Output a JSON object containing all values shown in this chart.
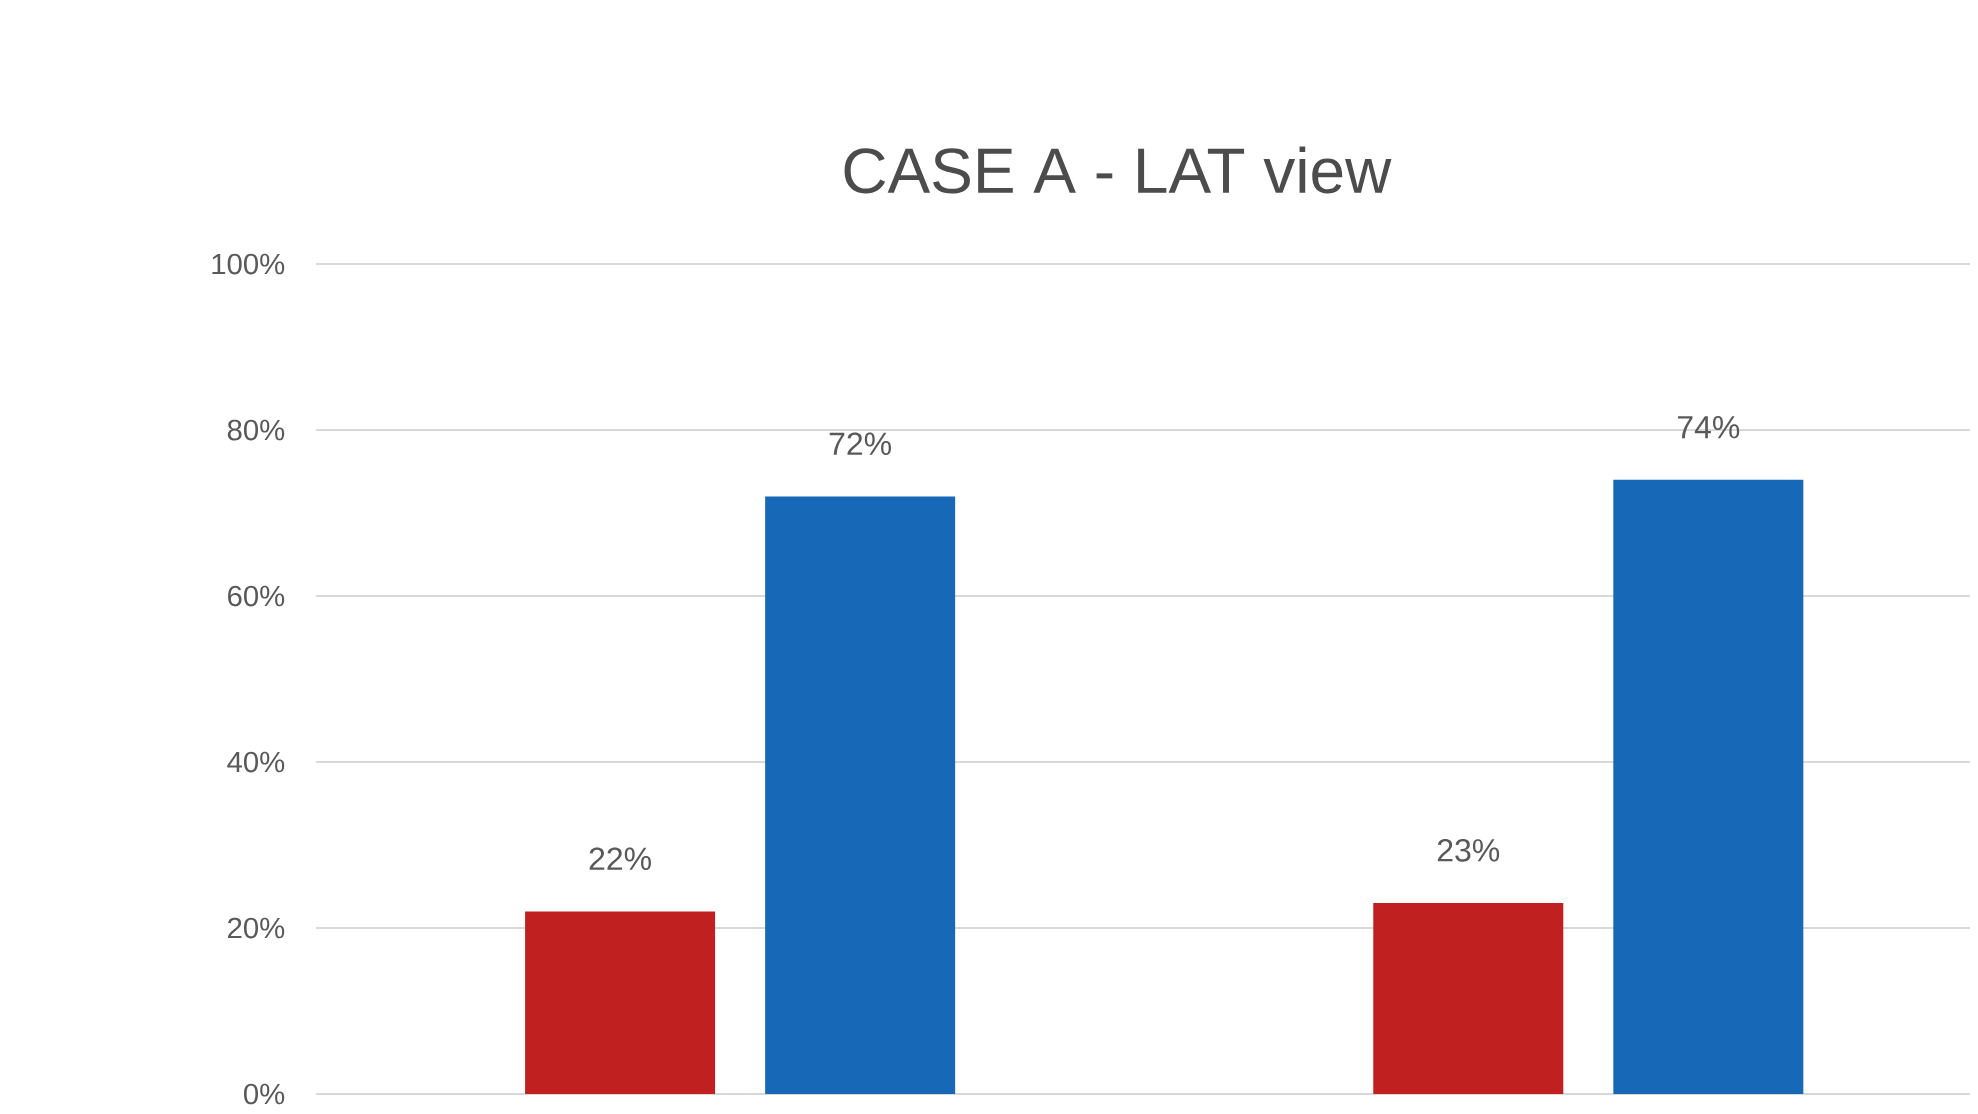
{
  "chart_data": {
    "type": "bar",
    "title": "CASE A - LAT view",
    "categories": [
      null,
      null
    ],
    "series": [
      {
        "color": "#c0201f",
        "values": [
          22,
          23
        ],
        "value_labels": [
          "22%",
          "23%"
        ]
      },
      {
        "color": "#1769b8",
        "values": [
          72,
          74
        ],
        "value_labels": [
          "72%",
          "74%"
        ]
      }
    ],
    "ylim": [
      0,
      100
    ],
    "yticks": [
      {
        "value": 0,
        "label": "0%"
      },
      {
        "value": 20,
        "label": "20%"
      },
      {
        "value": 40,
        "label": "40%"
      },
      {
        "value": 60,
        "label": "60%"
      },
      {
        "value": 80,
        "label": "80%"
      },
      {
        "value": 100,
        "label": "100%"
      }
    ],
    "grid": "y"
  }
}
